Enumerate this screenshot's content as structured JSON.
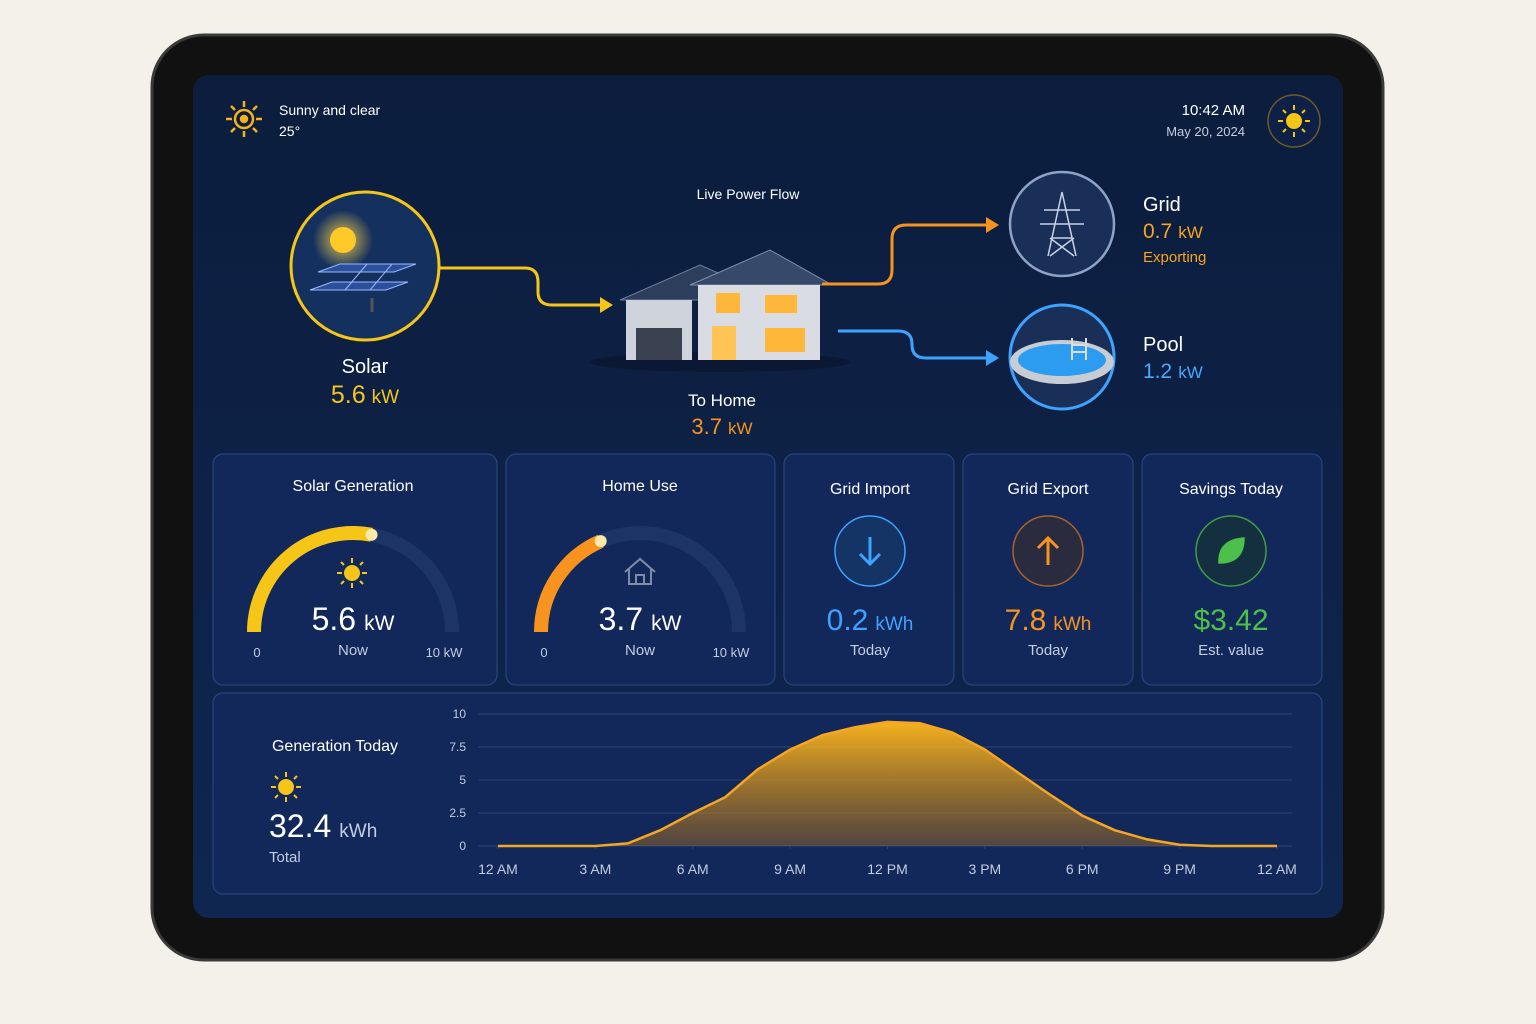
{
  "header": {
    "weather": {
      "condition": "Sunny and clear",
      "temperature": "25°"
    },
    "clock": {
      "time": "10:42 AM",
      "date": "May 20, 2024"
    }
  },
  "power_flow": {
    "title": "Live Power Flow",
    "solar": {
      "label": "Solar",
      "value": "5.6",
      "unit": "kW"
    },
    "home": {
      "label": "To Home",
      "value": "3.7",
      "unit": "kW"
    },
    "grid": {
      "label": "Grid",
      "value": "0.7",
      "unit": "kW",
      "status": "Exporting"
    },
    "pool": {
      "label": "Pool",
      "value": "1.2",
      "unit": "kW"
    }
  },
  "gauges": [
    {
      "title": "Solar Generation",
      "value": 5.6,
      "unit": "kW",
      "caption": "Now",
      "min": 0,
      "max": {
        "value": 10,
        "label": "10 kW"
      },
      "color": "#f5c518"
    },
    {
      "title": "Home Use",
      "value": 3.7,
      "unit": "kW",
      "caption": "Now",
      "min": 0,
      "max": {
        "value": 10,
        "label": "10 kW"
      },
      "color": "#f7931e"
    }
  ],
  "stats": [
    {
      "title": "Grid Import",
      "value": "0.2",
      "unit": "kWh",
      "caption": "Today",
      "color": "#3ea2ff"
    },
    {
      "title": "Grid Export",
      "value": "7.8",
      "unit": "kWh",
      "caption": "Today",
      "color": "#f7931e"
    },
    {
      "title": "Savings Today",
      "value": "$3.42",
      "caption": "Est. value",
      "color": "#4cc04a"
    }
  ],
  "chart_data": {
    "type": "area",
    "title": "Generation Today",
    "total": {
      "value": "32.4",
      "unit": "kWh",
      "caption": "Total"
    },
    "x": [
      0,
      1,
      2,
      3,
      4,
      5,
      6,
      7,
      8,
      9,
      10,
      11,
      12,
      13,
      14,
      15,
      16,
      17,
      18,
      19,
      20,
      21,
      22,
      23,
      24
    ],
    "values": [
      0,
      0,
      0,
      0,
      0.2,
      1.2,
      2.5,
      3.7,
      5.8,
      7.3,
      8.4,
      9.0,
      9.4,
      9.3,
      8.6,
      7.3,
      5.6,
      3.9,
      2.3,
      1.2,
      0.5,
      0.1,
      0,
      0,
      0
    ],
    "xlim": [
      0,
      24
    ],
    "xticks": [
      {
        "value": 0,
        "label": "12 AM"
      },
      {
        "value": 3,
        "label": "3 AM"
      },
      {
        "value": 6,
        "label": "6 AM"
      },
      {
        "value": 9,
        "label": "9 AM"
      },
      {
        "value": 12,
        "label": "12 PM"
      },
      {
        "value": 15,
        "label": "3 PM"
      },
      {
        "value": 18,
        "label": "6 PM"
      },
      {
        "value": 21,
        "label": "9 PM"
      },
      {
        "value": 24,
        "label": "12 AM"
      }
    ],
    "ylim": [
      0,
      10
    ],
    "yticks": [
      0,
      2.5,
      5,
      7.5,
      10
    ],
    "color": "#f5a623",
    "grid": true
  }
}
